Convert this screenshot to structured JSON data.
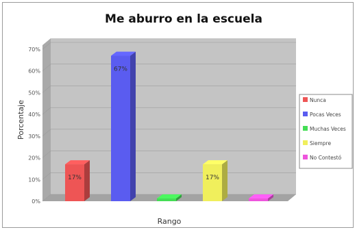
{
  "chart_data": {
    "type": "bar",
    "title": "Me aburro en la escuela",
    "xlabel": "Rango",
    "ylabel": "Porcentaje",
    "ylim": [
      0,
      70
    ],
    "yticks": [
      "0%",
      "10%",
      "20%",
      "30%",
      "40%",
      "50%",
      "60%",
      "70%"
    ],
    "categories": [
      "Nunca",
      "Pocas Veces",
      "Muchas Veces",
      "Siempre",
      "No Contestó"
    ],
    "values": [
      17,
      67,
      0,
      17,
      0
    ],
    "data_labels": [
      "17%",
      "67%",
      "",
      "17%",
      ""
    ],
    "colors": [
      "#ee5555",
      "#5a5cf0",
      "#44dd55",
      "#f0ef5c",
      "#ee55dd"
    ],
    "legend": [
      "Nunca",
      "Pocas Veces",
      "Muchas Veces",
      "Siempre",
      "No Contestó"
    ],
    "legend_position": "right",
    "grid": true,
    "view": "3d"
  }
}
